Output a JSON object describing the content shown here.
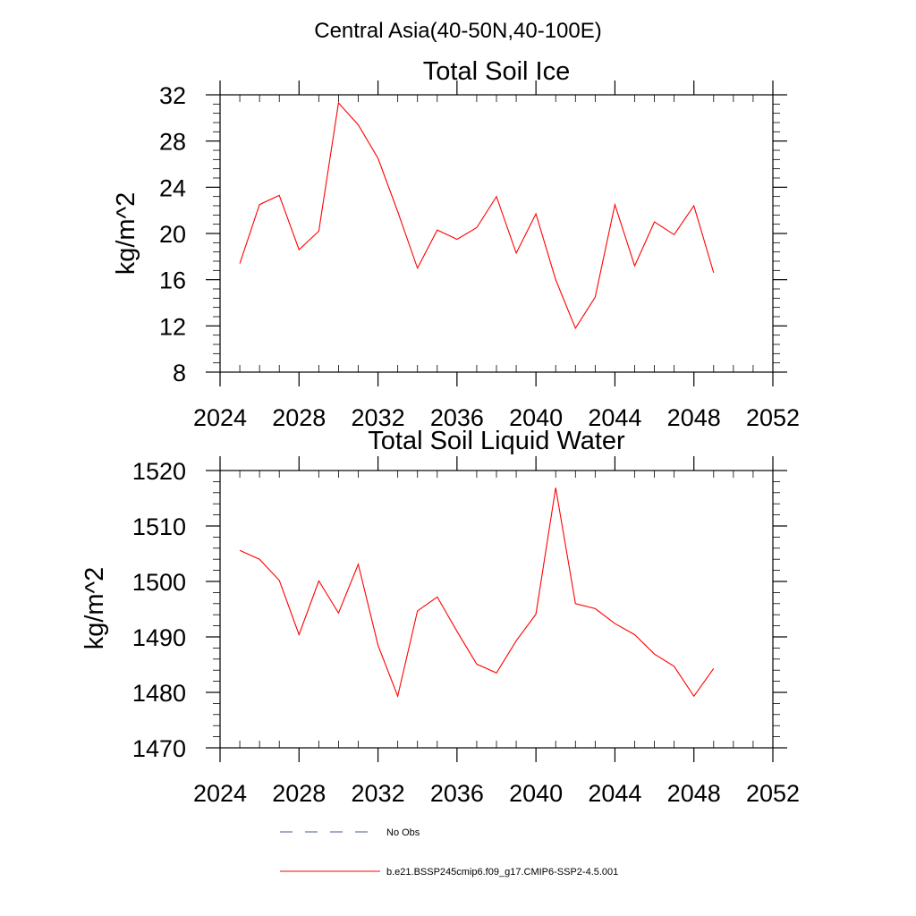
{
  "page_title": "Central Asia(40-50N,40-100E)",
  "chart_data": [
    {
      "type": "line",
      "title": "Total Soil Ice",
      "xlabel": "",
      "ylabel": "kg/m^2",
      "xlim": [
        2024,
        2052
      ],
      "ylim": [
        8,
        32
      ],
      "x_ticks": [
        2024,
        2028,
        2032,
        2036,
        2040,
        2044,
        2048,
        2052
      ],
      "y_ticks": [
        8,
        12,
        16,
        20,
        24,
        28,
        32
      ],
      "y_minor_step": 0.8,
      "x_minor_step": 1,
      "grid": false,
      "series": [
        {
          "name": "b.e21.BSSP245cmip6.f09_g17.CMIP6-SSP2-4.5.001",
          "color": "#ff0000",
          "x": [
            2025,
            2026,
            2027,
            2028,
            2029,
            2030,
            2031,
            2032,
            2033,
            2034,
            2035,
            2036,
            2037,
            2038,
            2039,
            2040,
            2041,
            2042,
            2043,
            2044,
            2045,
            2046,
            2047,
            2048,
            2049
          ],
          "y": [
            17.4,
            22.5,
            23.3,
            18.6,
            20.2,
            31.3,
            29.4,
            26.5,
            21.9,
            17.0,
            20.3,
            19.5,
            20.5,
            23.2,
            18.3,
            21.7,
            16.0,
            11.8,
            14.5,
            22.5,
            17.2,
            21.0,
            19.9,
            22.4,
            16.6
          ]
        }
      ]
    },
    {
      "type": "line",
      "title": "Total Soil Liquid Water",
      "xlabel": "",
      "ylabel": "kg/m^2",
      "xlim": [
        2024,
        2052
      ],
      "ylim": [
        1470,
        1520
      ],
      "x_ticks": [
        2024,
        2028,
        2032,
        2036,
        2040,
        2044,
        2048,
        2052
      ],
      "y_ticks": [
        1470,
        1480,
        1490,
        1500,
        1510,
        1520
      ],
      "y_minor_step": 2,
      "x_minor_step": 1,
      "grid": false,
      "series": [
        {
          "name": "b.e21.BSSP245cmip6.f09_g17.CMIP6-SSP2-4.5.001",
          "color": "#ff0000",
          "x": [
            2025,
            2026,
            2027,
            2028,
            2029,
            2030,
            2031,
            2032,
            2033,
            2034,
            2035,
            2036,
            2037,
            2038,
            2039,
            2040,
            2041,
            2042,
            2043,
            2044,
            2045,
            2046,
            2047,
            2048,
            2049
          ],
          "y": [
            1505.6,
            1504.0,
            1500.2,
            1490.4,
            1500.1,
            1494.3,
            1503.1,
            1488.5,
            1479.3,
            1494.7,
            1497.2,
            1491.0,
            1485.1,
            1483.5,
            1489.3,
            1494.1,
            1516.9,
            1496.0,
            1495.1,
            1492.4,
            1490.4,
            1486.9,
            1484.7,
            1479.3,
            1484.3
          ]
        }
      ]
    }
  ],
  "legend": {
    "placement": "bottom",
    "items": [
      {
        "label": "No Obs",
        "style": "dashed",
        "color": "#4a5a8a"
      },
      {
        "label": "b.e21.BSSP245cmip6.f09_g17.CMIP6-SSP2-4.5.001",
        "style": "solid",
        "color": "#ff0000"
      }
    ]
  }
}
